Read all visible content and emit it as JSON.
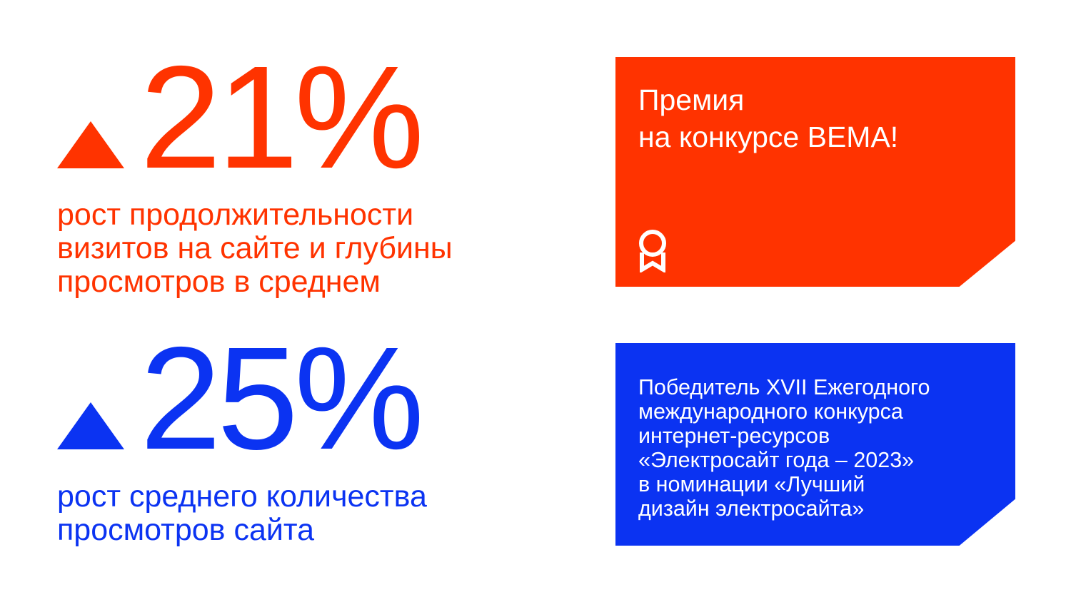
{
  "colors": {
    "accent_red": "#ff3300",
    "accent_blue": "#0b33f2",
    "background": "#ffffff"
  },
  "stats": [
    {
      "value": "21%",
      "icon": "triangle-up-icon",
      "description": "рост продолжительности\nвизитов на сайте и глубины\nпросмотров в среднем"
    },
    {
      "value": "25%",
      "icon": "triangle-up-icon",
      "description": "рост среднего количества\nпросмотров сайта"
    }
  ],
  "award_card": {
    "title": "Премия\nна конкурсе ВЕМА!",
    "icon": "award-ribbon-icon"
  },
  "winner_card": {
    "text": "Победитель XVII Ежегодного\nмеждународного конкурса\nинтернет-ресурсов\n«Электросайт года – 2023»\nв номинации «Лучший\nдизайн электросайта»"
  }
}
